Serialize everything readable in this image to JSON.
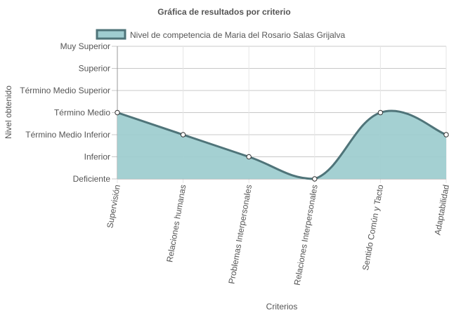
{
  "chart_data": {
    "type": "area",
    "title": "Gráfica de resultados por criterio",
    "xlabel": "Criterios",
    "ylabel": "Nivel obtenido",
    "categories": [
      "Supervisión",
      "Relaciones humanas",
      "Problemas Interpersonales",
      "Relaciones Interpersonales",
      "Sentido Común y Tacto",
      "Adaptabilidad"
    ],
    "y_levels": [
      "Deficiente",
      "Inferior",
      "Término Medio Inferior",
      "Término Medio",
      "Término Medio Superior",
      "Superior",
      "Muy Superior"
    ],
    "series": [
      {
        "name": "Nivel de competencia de Maria del Rosario Salas Grijalva",
        "values": [
          3,
          2,
          1,
          0,
          3,
          2
        ]
      }
    ],
    "ylim": [
      0,
      6
    ],
    "grid": true,
    "legend_position": "top",
    "colors": {
      "fill": "#9fcdd0",
      "line": "#4f7479",
      "point_fill": "#ffffff"
    }
  }
}
